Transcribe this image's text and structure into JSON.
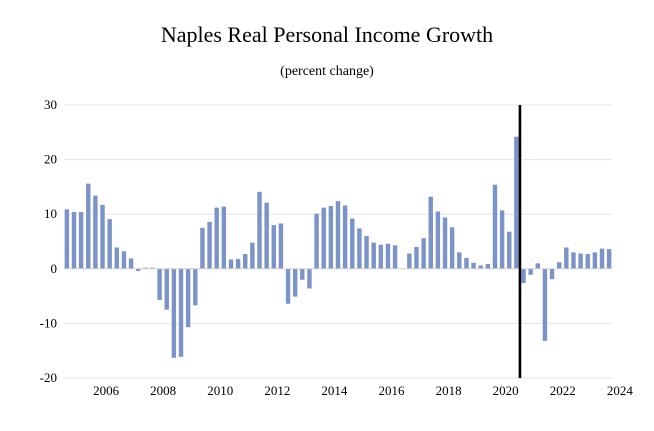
{
  "chart_data": {
    "type": "bar",
    "title": "Naples Real Personal Income Growth",
    "subtitle": "(percent change)",
    "xlabel": "",
    "ylabel": "",
    "ylim": [
      -20,
      30
    ],
    "yticks": [
      30,
      20,
      10,
      0,
      -10,
      -20
    ],
    "xtick_labels": [
      "2006",
      "2008",
      "2010",
      "2012",
      "2014",
      "2016",
      "2018",
      "2020",
      "2022",
      "2024"
    ],
    "bar_color": "#7b93c6",
    "forecast_line_color": "#000000",
    "grid_color": "#e6e6e6",
    "start": "2005Q1",
    "forecast_starts_after": "2020Q4",
    "values": [
      10.9,
      10.4,
      10.4,
      15.6,
      13.4,
      11.7,
      9.1,
      3.9,
      3.2,
      1.9,
      -0.4,
      0.2,
      0.2,
      -5.7,
      -7.5,
      -16.3,
      -16.1,
      -10.7,
      -6.7,
      7.5,
      8.6,
      11.2,
      11.4,
      1.7,
      1.8,
      2.7,
      4.8,
      14.1,
      12.1,
      8.0,
      8.3,
      -6.4,
      -5.1,
      -2.0,
      -3.6,
      10.1,
      11.2,
      11.5,
      12.4,
      11.6,
      9.2,
      7.4,
      6.0,
      4.8,
      4.4,
      4.6,
      4.3,
      0.0,
      2.8,
      4.0,
      5.6,
      13.2,
      10.5,
      9.4,
      7.6,
      3.0,
      2.0,
      1.1,
      0.6,
      0.9,
      15.4,
      10.7,
      6.8,
      24.2,
      -2.6,
      -1.1,
      1.0,
      -13.2,
      -1.9,
      1.2,
      3.9,
      3.0,
      2.8,
      2.7,
      3.0,
      3.7,
      3.6
    ]
  }
}
